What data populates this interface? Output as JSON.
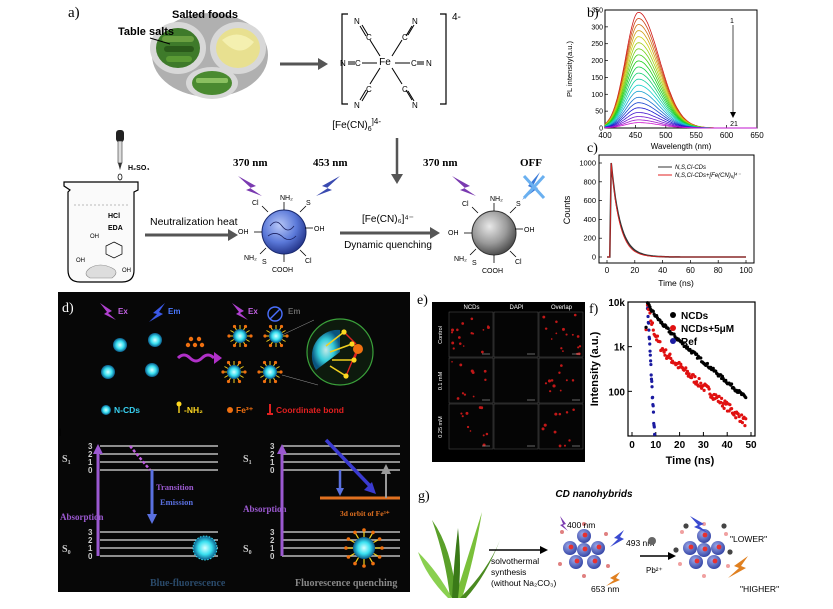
{
  "panel_a": {
    "label": "a)",
    "salted_foods": "Salted foods",
    "table_salts": "Table salts",
    "ferro_complex": "[Fe(CN)",
    "ferro_sub": "6",
    "ferro_sup": "]4-",
    "charge": "4-",
    "fe": "Fe",
    "cn": "C",
    "n": "N",
    "h2so4": "H₂SO₄",
    "hcl": "HCl",
    "eda": "EDA",
    "oh": "OH",
    "ex_left": "370 nm",
    "em_left": "453 nm",
    "ex_right": "370 nm",
    "off": "OFF",
    "neutralization": "Neutralization heat",
    "ferro_arrow": "[Fe(CN)₆]⁴⁻",
    "dynamic_quenching": "Dynamic quenching",
    "groups": [
      "OH",
      "NH₂",
      "Cl",
      "S",
      "OH",
      "OH",
      "NH₂",
      "S",
      "COOH",
      "Cl"
    ]
  },
  "panel_b": {
    "label": "b)",
    "ylabel": "PL intensity(a.u.)",
    "xlabel": "Wavelength (nm)",
    "curve_start": "1",
    "curve_end": "21"
  },
  "panel_c": {
    "label": "c)",
    "ylabel": "Counts",
    "xlabel": "Time (ns)",
    "legend1": "N,S,Cl-CDs",
    "legend2": "N,S,Cl-CDs+[Fe(CN)₆]⁴⁻"
  },
  "panel_d": {
    "label": "d)",
    "ex": "Ex",
    "em": "Em",
    "legend_ncds": "N-CDs",
    "legend_nh2": "-NH₂",
    "legend_fe": "Fe³⁺",
    "legend_bond": "Coordinate bond",
    "s1": "S",
    "s1_sub": "1",
    "s0": "S",
    "s0_sub": "0",
    "levels": [
      "3",
      "2",
      "1",
      "0"
    ],
    "absorption": "Absorption",
    "transition": "Transition",
    "emission": "Emission",
    "orbit": "3d orbit of Fe³⁺",
    "blue": "Blue-fluorescence",
    "quench": "Fluorescence quenching"
  },
  "panel_e": {
    "label": "e)",
    "cols": [
      "NCDs",
      "DAPI",
      "Overlap"
    ],
    "rows": [
      "Control",
      "0.1 mM",
      "0.25 mM"
    ]
  },
  "panel_f": {
    "label": "f)",
    "ylabel": "Intensity (a.u.)",
    "xlabel": "Time (ns)",
    "legend": [
      "NCDs",
      "NCDs+5μM",
      "Ref"
    ]
  },
  "panel_g": {
    "label": "g)",
    "title": "CD nanohybrids",
    "l400": "400 nm",
    "l493": "493 nm",
    "l653": "653 nm",
    "solvo1": "solvothermal",
    "solvo2": "synthesis",
    "solvo3": "(without Na₂CO₃)",
    "pb": "Pb²⁺",
    "lower": "\"LOWER\"",
    "higher": "\"HIGHER\""
  },
  "chart_data": [
    {
      "type": "line",
      "panel": "b",
      "xlabel": "Wavelength (nm)",
      "ylabel": "PL intensity(a.u.)",
      "xlim": [
        400,
        650
      ],
      "ylim": [
        0,
        350
      ],
      "x_ticks": [
        400,
        450,
        500,
        550,
        600,
        650
      ],
      "y_ticks": [
        0,
        50,
        100,
        150,
        200,
        250,
        300,
        350
      ],
      "peak_x": 455,
      "series_count": 21,
      "peak_values": [
        343,
        325,
        307,
        289,
        271,
        253,
        235,
        217,
        199,
        181,
        163,
        145,
        127,
        109,
        91,
        75,
        60,
        46,
        34,
        24,
        16
      ]
    },
    {
      "type": "line",
      "panel": "c",
      "xlabel": "Time (ns)",
      "ylabel": "Counts",
      "xlim": [
        0,
        100
      ],
      "ylim": [
        0,
        1000
      ],
      "x_ticks": [
        0,
        20,
        40,
        60,
        80,
        100
      ],
      "y_ticks": [
        0,
        200,
        400,
        600,
        800,
        1000
      ],
      "series": [
        {
          "name": "N,S,Cl-CDs",
          "color": "#333333",
          "peak": 1000,
          "peak_x": 3,
          "decay_ns": 6.5
        },
        {
          "name": "N,S,Cl-CDs+[Fe(CN)₆]⁴⁻",
          "color": "#e02020",
          "peak": 1000,
          "peak_x": 3,
          "decay_ns": 6.0
        }
      ]
    },
    {
      "type": "scatter",
      "panel": "f",
      "xlabel": "Time (ns)",
      "ylabel": "Intensity (a.u.)",
      "xlim": [
        0,
        50
      ],
      "ylim": [
        10,
        10000
      ],
      "y_scale": "log",
      "x_ticks": [
        0,
        10,
        20,
        30,
        40,
        50
      ],
      "y_ticks": [
        "100",
        "1k",
        "10k"
      ],
      "series": [
        {
          "name": "NCDs",
          "color": "#000000",
          "start": 9000,
          "t0": 6.5,
          "end_x": 48,
          "end": 70
        },
        {
          "name": "NCDs+5μM",
          "color": "#e01010",
          "start": 8000,
          "t0": 6.5,
          "end_x": 48,
          "end": 20
        },
        {
          "name": "Ref",
          "color": "#1a1aa0",
          "start": 9000,
          "t0": 6.5,
          "end_x": 9.5,
          "end": 10
        }
      ]
    }
  ]
}
